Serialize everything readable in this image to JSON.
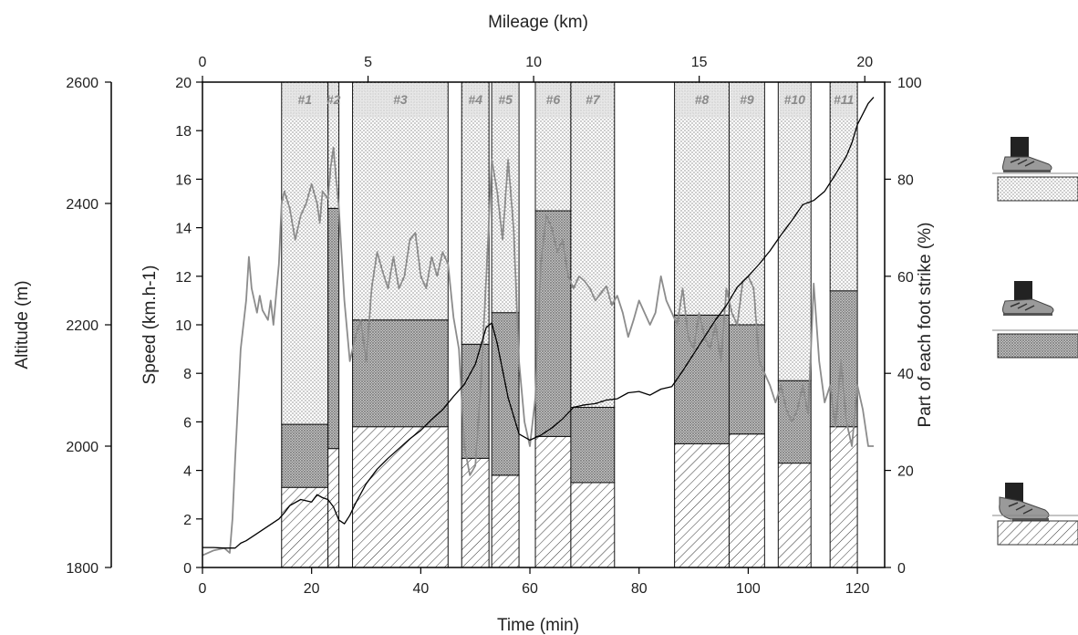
{
  "chart_data": {
    "type": "bar",
    "subtype": "stacked-bar with line overlays, multiple axes",
    "axes": {
      "x_bottom": {
        "label": "Time (min)",
        "range": [
          0,
          125
        ],
        "ticks": [
          0,
          20,
          40,
          60,
          80,
          100,
          120
        ]
      },
      "x_top": {
        "label": "Mileage (km)",
        "range": [
          0,
          20.6
        ],
        "ticks": [
          0,
          5,
          10,
          15,
          20
        ]
      },
      "y_speed": {
        "label": "Speed (km.h-1)",
        "range": [
          0,
          20
        ],
        "ticks": [
          0,
          2,
          4,
          6,
          8,
          10,
          12,
          14,
          16,
          18,
          20
        ]
      },
      "y_altitude": {
        "label": "Altitude (m)",
        "range": [
          1800,
          2600
        ],
        "ticks": [
          1800,
          2000,
          2200,
          2400,
          2600
        ]
      },
      "y_percent": {
        "label": "Part of each foot strike (%)",
        "range": [
          0,
          100
        ],
        "ticks": [
          0,
          20,
          40,
          60,
          80,
          100
        ]
      }
    },
    "grid": false,
    "legend": "right, foot pictograms (rearfoot dotted, midfoot dark, forefoot hatched)",
    "stack_order": [
      "forefoot",
      "midfoot",
      "rearfoot"
    ],
    "segments": [
      {
        "label": "#1",
        "t_start": 14.5,
        "t_end": 23.0,
        "forefoot": 16.5,
        "midfoot": 13.0,
        "rearfoot": 70.5
      },
      {
        "label": "#2",
        "t_start": 23.0,
        "t_end": 25.0,
        "forefoot": 24.5,
        "midfoot": 49.5,
        "rearfoot": 26.0
      },
      {
        "label": "#3",
        "t_start": 27.5,
        "t_end": 45.0,
        "forefoot": 29.0,
        "midfoot": 22.0,
        "rearfoot": 49.0
      },
      {
        "label": "#4",
        "t_start": 47.5,
        "t_end": 52.5,
        "forefoot": 22.5,
        "midfoot": 23.5,
        "rearfoot": 54.0
      },
      {
        "label": "#5",
        "t_start": 53.0,
        "t_end": 58.0,
        "forefoot": 19.0,
        "midfoot": 33.5,
        "rearfoot": 47.5
      },
      {
        "label": "#6",
        "t_start": 61.0,
        "t_end": 67.5,
        "forefoot": 27.0,
        "midfoot": 46.5,
        "rearfoot": 26.5
      },
      {
        "label": "#7",
        "t_start": 67.5,
        "t_end": 75.5,
        "forefoot": 17.5,
        "midfoot": 15.5,
        "rearfoot": 67.0
      },
      {
        "label": "#8",
        "t_start": 86.5,
        "t_end": 96.5,
        "forefoot": 25.5,
        "midfoot": 26.5,
        "rearfoot": 48.0
      },
      {
        "label": "#9",
        "t_start": 96.5,
        "t_end": 103.0,
        "forefoot": 27.5,
        "midfoot": 22.5,
        "rearfoot": 50.0
      },
      {
        "label": "#10",
        "t_start": 105.5,
        "t_end": 111.5,
        "forefoot": 21.5,
        "midfoot": 17.0,
        "rearfoot": 61.5
      },
      {
        "label": "#11",
        "t_start": 115.0,
        "t_end": 120.0,
        "forefoot": 29.0,
        "midfoot": 28.0,
        "rearfoot": 43.0
      }
    ],
    "series": [
      {
        "color": "#8c8c8c",
        "axis": "y_speed",
        "x": [
          0,
          2,
          4,
          5,
          5.5,
          6,
          7,
          8,
          8.5,
          9,
          10,
          10.5,
          11,
          12,
          12.5,
          13,
          14,
          14.5,
          15,
          16,
          17,
          18,
          19,
          20,
          21,
          21.5,
          22,
          23,
          23.5,
          24,
          24.5,
          25,
          26,
          27,
          28,
          29,
          30,
          31,
          32,
          33,
          34,
          35,
          36,
          37,
          38,
          39,
          40,
          41,
          42,
          43,
          44,
          45,
          46,
          47,
          48,
          49,
          50,
          51,
          52,
          53,
          54,
          55,
          56,
          57,
          58,
          59,
          60,
          61,
          62,
          63,
          64,
          65,
          66,
          67,
          68,
          69,
          70,
          71,
          72,
          73,
          74,
          75,
          76,
          77,
          78,
          79,
          80,
          81,
          82,
          83,
          84,
          85,
          86,
          87,
          88,
          89,
          90,
          91,
          92,
          93,
          94,
          95,
          96,
          97,
          98,
          99,
          100,
          101,
          102,
          103,
          104,
          105,
          106,
          107,
          108,
          109,
          110,
          111,
          112,
          113,
          114,
          115,
          116,
          117,
          118,
          119,
          120,
          121,
          122,
          123
        ],
        "values": [
          0.5,
          0.7,
          0.8,
          0.6,
          2.0,
          4.5,
          9.0,
          11.0,
          12.8,
          11.5,
          10.5,
          11.2,
          10.6,
          10.2,
          11.0,
          10.0,
          12.5,
          15.0,
          15.5,
          14.8,
          13.5,
          14.5,
          15.0,
          15.8,
          15.0,
          14.2,
          15.5,
          15.2,
          16.5,
          17.3,
          16.0,
          14.8,
          11.0,
          8.5,
          9.5,
          10.2,
          8.5,
          11.5,
          13.0,
          12.2,
          11.5,
          12.8,
          11.5,
          12.0,
          13.5,
          13.8,
          12.0,
          11.5,
          12.8,
          12.0,
          13.0,
          12.5,
          10.3,
          9.0,
          5.0,
          3.8,
          4.2,
          7.5,
          12.0,
          16.8,
          15.5,
          13.5,
          16.8,
          14.0,
          8.5,
          6.0,
          5.0,
          7.0,
          12.5,
          14.5,
          14.0,
          13.0,
          13.5,
          12.0,
          11.5,
          12.0,
          11.8,
          11.5,
          11.0,
          11.3,
          11.6,
          10.8,
          11.2,
          10.5,
          9.5,
          10.2,
          11.0,
          10.5,
          10.0,
          10.5,
          12.0,
          11.0,
          10.5,
          10.0,
          11.5,
          9.5,
          9.0,
          10.5,
          9.5,
          9.0,
          10.0,
          8.5,
          11.5,
          10.5,
          10.0,
          11.8,
          12.0,
          11.5,
          8.5,
          8.0,
          7.5,
          6.8,
          7.5,
          6.5,
          6.0,
          6.5,
          7.5,
          6.3,
          11.7,
          8.5,
          6.8,
          7.5,
          5.8,
          8.5,
          6.0,
          5.0,
          7.5,
          6.5,
          5.0,
          5.0
        ]
      },
      {
        "color": "#000000",
        "axis": "y_altitude",
        "x": [
          0,
          2,
          4,
          6,
          7,
          8,
          10,
          12,
          14,
          15,
          16,
          18,
          20,
          21,
          22,
          23,
          24,
          25,
          26,
          27,
          28,
          30,
          32,
          34,
          36,
          38,
          40,
          42,
          44,
          46,
          48,
          50,
          52,
          53,
          54,
          56,
          58,
          60,
          62,
          64,
          66,
          68,
          70,
          72,
          74,
          76,
          78,
          80,
          82,
          84,
          86,
          88,
          90,
          92,
          94,
          96,
          98,
          100,
          102,
          104,
          106,
          108,
          110,
          112,
          114,
          116,
          118,
          119,
          120,
          122,
          123
        ],
        "values": [
          1833,
          1833,
          1832,
          1832,
          1840,
          1844,
          1856,
          1868,
          1880,
          1890,
          1902,
          1912,
          1908,
          1920,
          1915,
          1912,
          1900,
          1878,
          1872,
          1886,
          1905,
          1938,
          1962,
          1980,
          1996,
          2012,
          2026,
          2044,
          2060,
          2082,
          2102,
          2135,
          2196,
          2203,
          2170,
          2080,
          2020,
          2010,
          2018,
          2030,
          2045,
          2064,
          2068,
          2070,
          2076,
          2078,
          2088,
          2090,
          2084,
          2094,
          2098,
          2124,
          2152,
          2180,
          2208,
          2232,
          2262,
          2280,
          2300,
          2322,
          2348,
          2372,
          2398,
          2405,
          2420,
          2448,
          2478,
          2500,
          2530,
          2565,
          2575
        ]
      }
    ]
  },
  "labels": {
    "top_axis_title": "Mileage (km)",
    "bottom_axis_title": "Time (min)",
    "speed_axis_title": "Speed (km.h-1)",
    "altitude_axis_title": "Altitude (m)",
    "percent_axis_title": "Part of each foot strike (%)"
  },
  "legend_items": [
    {
      "name": "rearfoot",
      "pattern": "dots",
      "icon": "rearfoot-shoe-icon"
    },
    {
      "name": "midfoot",
      "pattern": "dark-dots",
      "icon": "midfoot-shoe-icon"
    },
    {
      "name": "forefoot",
      "pattern": "hatch",
      "icon": "forefoot-shoe-icon"
    }
  ]
}
